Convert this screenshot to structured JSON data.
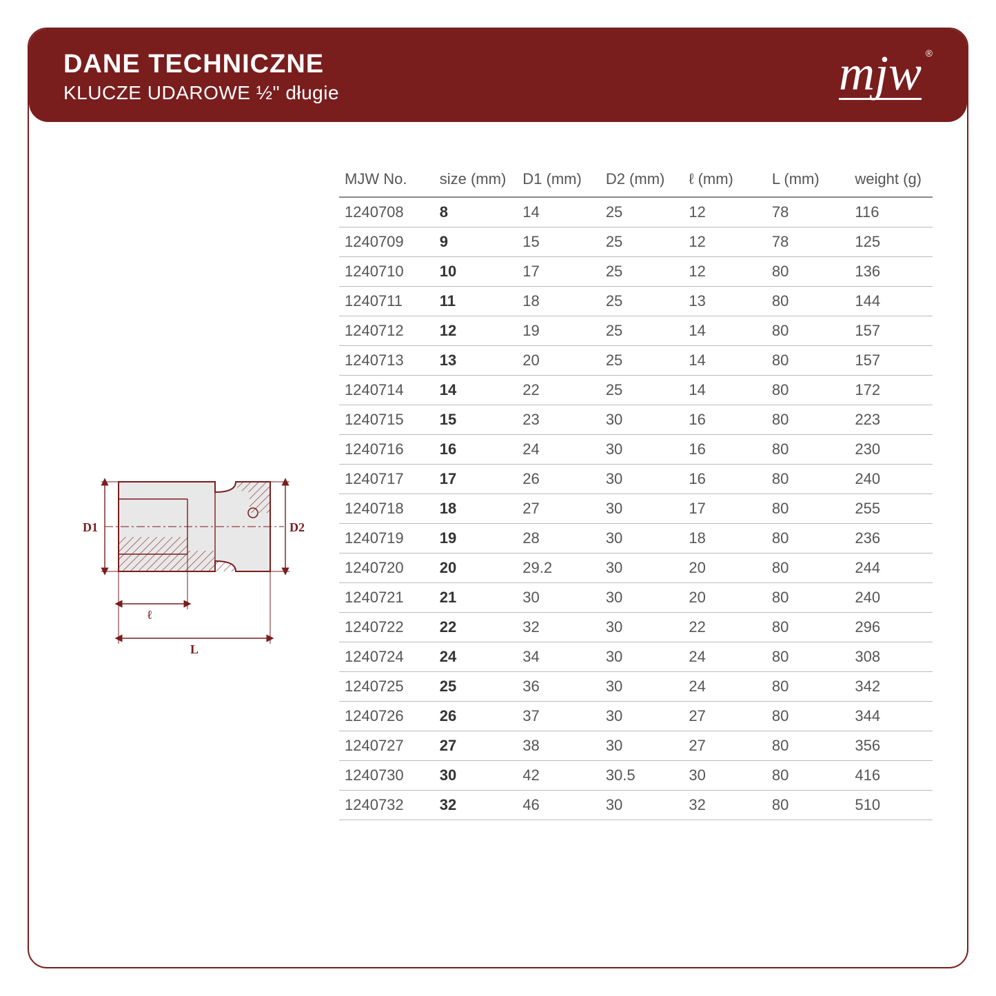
{
  "header": {
    "title": "DANE TECHNICZNE",
    "subtitle": "KLUCZE UDAROWE ½\" długie",
    "logo": "mjw",
    "logo_mark": "®"
  },
  "colors": {
    "brand": "#7a1d1d",
    "border": "#7a1d1d",
    "text": "#555555",
    "rule": "#bbbbbb",
    "background": "#ffffff"
  },
  "diagram": {
    "labels": {
      "d1": "D1",
      "d2": "D2",
      "l_small": "ℓ",
      "l_big": "L"
    },
    "stroke": "#7a1d1d",
    "fill": "#d9d9d9",
    "hatch": "#7a1d1d"
  },
  "table": {
    "columns": [
      "MJW No.",
      "size (mm)",
      "D1 (mm)",
      "D2 (mm)",
      "ℓ (mm)",
      "L (mm)",
      "weight (g)"
    ],
    "col_widths_pct": [
      16,
      14,
      14,
      14,
      14,
      14,
      14
    ],
    "bold_column_index": 1,
    "rows": [
      [
        "1240708",
        "8",
        "14",
        "25",
        "12",
        "78",
        "116"
      ],
      [
        "1240709",
        "9",
        "15",
        "25",
        "12",
        "78",
        "125"
      ],
      [
        "1240710",
        "10",
        "17",
        "25",
        "12",
        "80",
        "136"
      ],
      [
        "1240711",
        "11",
        "18",
        "25",
        "13",
        "80",
        "144"
      ],
      [
        "1240712",
        "12",
        "19",
        "25",
        "14",
        "80",
        "157"
      ],
      [
        "1240713",
        "13",
        "20",
        "25",
        "14",
        "80",
        "157"
      ],
      [
        "1240714",
        "14",
        "22",
        "25",
        "14",
        "80",
        "172"
      ],
      [
        "1240715",
        "15",
        "23",
        "30",
        "16",
        "80",
        "223"
      ],
      [
        "1240716",
        "16",
        "24",
        "30",
        "16",
        "80",
        "230"
      ],
      [
        "1240717",
        "17",
        "26",
        "30",
        "16",
        "80",
        "240"
      ],
      [
        "1240718",
        "18",
        "27",
        "30",
        "17",
        "80",
        "255"
      ],
      [
        "1240719",
        "19",
        "28",
        "30",
        "18",
        "80",
        "236"
      ],
      [
        "1240720",
        "20",
        "29.2",
        "30",
        "20",
        "80",
        "244"
      ],
      [
        "1240721",
        "21",
        "30",
        "30",
        "20",
        "80",
        "240"
      ],
      [
        "1240722",
        "22",
        "32",
        "30",
        "22",
        "80",
        "296"
      ],
      [
        "1240724",
        "24",
        "34",
        "30",
        "24",
        "80",
        "308"
      ],
      [
        "1240725",
        "25",
        "36",
        "30",
        "24",
        "80",
        "342"
      ],
      [
        "1240726",
        "26",
        "37",
        "30",
        "27",
        "80",
        "344"
      ],
      [
        "1240727",
        "27",
        "38",
        "30",
        "27",
        "80",
        "356"
      ],
      [
        "1240730",
        "30",
        "42",
        "30.5",
        "30",
        "80",
        "416"
      ],
      [
        "1240732",
        "32",
        "46",
        "30",
        "32",
        "80",
        "510"
      ]
    ]
  }
}
